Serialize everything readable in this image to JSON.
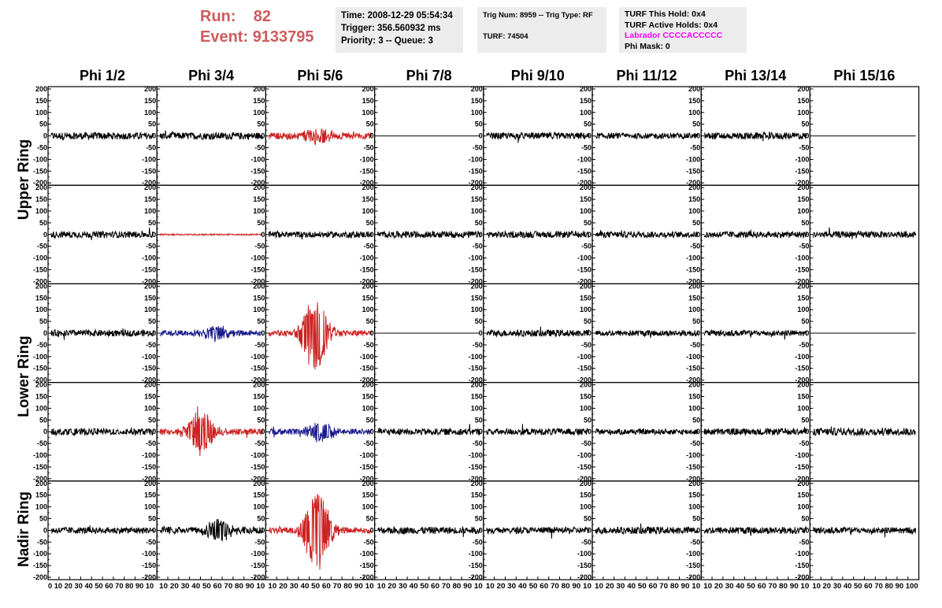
{
  "header": {
    "run_label": "Run:",
    "run_value": "82",
    "event_label": "Event:",
    "event_value": "9133795"
  },
  "info": {
    "time": "Time: 2008-12-29 05:54:34",
    "trigger": "Trigger: 356.560932 ms",
    "priority": "Priority: 3 -- Queue: 3",
    "trig_num": "Trig Num: 8959 -- Trig Type: RF",
    "turf": "TURF: 74504",
    "turf_hold": "TURF This Hold: 0x4",
    "turf_active": "TURF Active Holds: 0x4",
    "labrador": "Labrador CCCCACCCCC",
    "phi_mask": "Phi Mask: 0"
  },
  "colors": {
    "run_text": "#cd5c5c",
    "labrador_text": "#ff00ff",
    "trace_default": "#000000",
    "trace_red": "#cc2222",
    "trace_blue": "#1a1a8c",
    "info_bg": "#ececec"
  },
  "chart_data": {
    "type": "line",
    "columns": [
      "Phi 1/2",
      "Phi 3/4",
      "Phi 5/6",
      "Phi 7/8",
      "Phi 9/10",
      "Phi 11/12",
      "Phi 13/14",
      "Phi 15/16"
    ],
    "rows": [
      "Upper Ring",
      "Lower Ring",
      "Nadir Ring"
    ],
    "row_label_text": [
      "Upper Ring",
      "Lower Ring",
      "Nadir Ring"
    ],
    "ylim": [
      -210,
      210
    ],
    "xlim": [
      0,
      100
    ],
    "y_ticks": [
      200,
      150,
      100,
      50,
      0,
      -50,
      -100,
      -150,
      -200
    ],
    "x_ticks": [
      0,
      10,
      20,
      30,
      40,
      50,
      60,
      70,
      80,
      90,
      100
    ],
    "x_tick_labels": {
      "first": "0 10 20 30 40 50 60 70 80 90 10",
      "middle": "10 20 30 40 50 60 70 80 90 10",
      "last": "10 20 30 40 50 60 70 80 90 100"
    },
    "panels": [
      [
        {
          "color": "black",
          "amp": 15,
          "peak": 0
        },
        {
          "color": "black",
          "amp": 15,
          "peak": 0
        },
        {
          "color": "red",
          "amp": 14,
          "peak": 30,
          "peak_pos": 48
        },
        {
          "color": "black",
          "amp": 0,
          "flat": true
        },
        {
          "color": "black",
          "amp": 14,
          "peak": 0
        },
        {
          "color": "black",
          "amp": 12,
          "peak": 0
        },
        {
          "color": "black",
          "amp": 15,
          "peak": 0
        },
        {
          "color": "black",
          "amp": 0,
          "flat": true
        }
      ],
      [
        {
          "color": "black",
          "amp": 14,
          "peak": 0
        },
        {
          "color": "red",
          "amp": 3,
          "peak": 0
        },
        {
          "color": "black",
          "amp": 13,
          "peak": 0
        },
        {
          "color": "black",
          "amp": 14,
          "peak": 0
        },
        {
          "color": "black",
          "amp": 14,
          "peak": 0
        },
        {
          "color": "black",
          "amp": 13,
          "peak": 0
        },
        {
          "color": "black",
          "amp": 14,
          "peak": 0
        },
        {
          "color": "black",
          "amp": 14,
          "peak": 0
        }
      ],
      [
        {
          "color": "black",
          "amp": 14,
          "peak": 0
        },
        {
          "color": "blue",
          "amp": 12,
          "peak": 30,
          "peak_pos": 55
        },
        {
          "color": "red",
          "amp": 12,
          "peak": 160,
          "peak_pos": 45
        },
        {
          "color": "black",
          "amp": 0,
          "flat": true
        },
        {
          "color": "black",
          "amp": 14,
          "peak": 0
        },
        {
          "color": "black",
          "amp": 13,
          "peak": 0
        },
        {
          "color": "black",
          "amp": 13,
          "peak": 0
        },
        {
          "color": "black",
          "amp": 0,
          "flat": true
        }
      ],
      [
        {
          "color": "black",
          "amp": 14,
          "peak": 0
        },
        {
          "color": "red",
          "amp": 14,
          "peak": 95,
          "peak_pos": 40
        },
        {
          "color": "blue",
          "amp": 13,
          "peak": 40,
          "peak_pos": 50
        },
        {
          "color": "black",
          "amp": 14,
          "peak": 0
        },
        {
          "color": "black",
          "amp": 14,
          "peak": 0
        },
        {
          "color": "black",
          "amp": 12,
          "peak": 0
        },
        {
          "color": "black",
          "amp": 14,
          "peak": 0
        },
        {
          "color": "black",
          "amp": 16,
          "peak": 0
        }
      ],
      [
        {
          "color": "black",
          "amp": 14,
          "peak": 0
        },
        {
          "color": "black",
          "amp": 14,
          "peak": 45,
          "peak_pos": 58
        },
        {
          "color": "red",
          "amp": 13,
          "peak": 170,
          "peak_pos": 47
        },
        {
          "color": "black",
          "amp": 15,
          "peak": 0
        },
        {
          "color": "black",
          "amp": 14,
          "peak": 0
        },
        {
          "color": "black",
          "amp": 15,
          "peak": 0
        },
        {
          "color": "black",
          "amp": 15,
          "peak": 0
        },
        {
          "color": "black",
          "amp": 14,
          "peak": 0
        }
      ]
    ]
  }
}
